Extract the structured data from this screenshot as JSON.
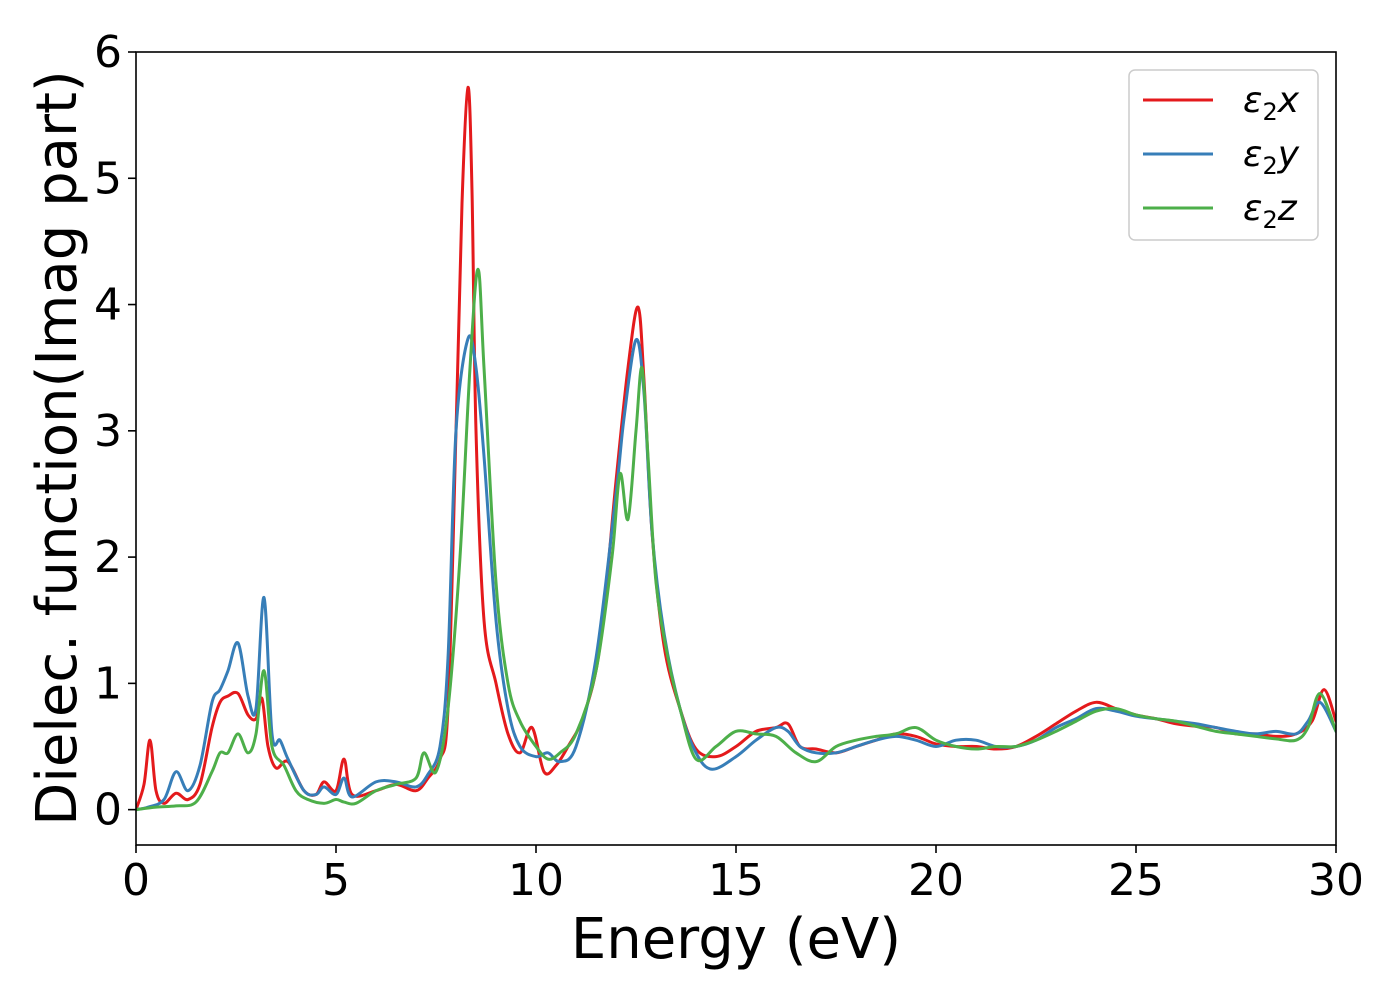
{
  "chart_data": {
    "type": "line",
    "xlabel": "Energy (eV)",
    "ylabel": "Dielec. function(Imag part)",
    "xlim": [
      0,
      30
    ],
    "ylim": [
      -0.28,
      6
    ],
    "xticks": [
      "0",
      "5",
      "10",
      "15",
      "20",
      "25",
      "30"
    ],
    "yticks": [
      "0",
      "1",
      "2",
      "3",
      "4",
      "5",
      "6"
    ],
    "xtick_values": [
      0,
      5,
      10,
      15,
      20,
      25,
      30
    ],
    "ytick_values": [
      0,
      1,
      2,
      3,
      4,
      5,
      6
    ],
    "legend_position": "top-right",
    "grid": false,
    "series": [
      {
        "name": "ε₂x",
        "legend": {
          "base": "ε",
          "sub": "2",
          "var": "x"
        },
        "color": "#e41a1c",
        "x": [
          0,
          0.2,
          0.35,
          0.5,
          0.7,
          1.0,
          1.3,
          1.6,
          1.9,
          2.1,
          2.3,
          2.55,
          2.8,
          3.0,
          3.15,
          3.3,
          3.5,
          3.8,
          4.2,
          4.5,
          4.7,
          5.0,
          5.2,
          5.4,
          6.0,
          6.5,
          7.0,
          7.3,
          7.6,
          7.8,
          8.0,
          8.15,
          8.3,
          8.4,
          8.5,
          8.7,
          9.0,
          9.3,
          9.6,
          9.9,
          10.2,
          10.5,
          10.8,
          11.2,
          11.6,
          12.0,
          12.3,
          12.55,
          12.7,
          12.9,
          13.2,
          13.6,
          14.0,
          14.5,
          15.0,
          15.5,
          16.0,
          16.3,
          16.6,
          17.0,
          17.5,
          18.0,
          18.5,
          19.0,
          19.5,
          20.0,
          20.5,
          21.0,
          21.5,
          22.0,
          22.5,
          23.0,
          23.5,
          24.0,
          24.5,
          25.0,
          25.5,
          26.0,
          26.5,
          27.0,
          27.5,
          28.0,
          28.5,
          29.0,
          29.4,
          29.7,
          30.0
        ],
        "y": [
          0,
          0.2,
          0.55,
          0.15,
          0.05,
          0.13,
          0.08,
          0.2,
          0.65,
          0.85,
          0.9,
          0.92,
          0.75,
          0.72,
          0.88,
          0.5,
          0.33,
          0.38,
          0.15,
          0.12,
          0.22,
          0.15,
          0.4,
          0.12,
          0.15,
          0.2,
          0.15,
          0.25,
          0.4,
          0.8,
          3.0,
          4.8,
          5.72,
          4.9,
          3.0,
          1.5,
          1.0,
          0.6,
          0.45,
          0.65,
          0.3,
          0.35,
          0.5,
          0.75,
          1.3,
          2.6,
          3.5,
          3.98,
          3.4,
          2.2,
          1.3,
          0.8,
          0.48,
          0.42,
          0.5,
          0.62,
          0.65,
          0.68,
          0.5,
          0.48,
          0.45,
          0.5,
          0.55,
          0.6,
          0.58,
          0.52,
          0.5,
          0.5,
          0.48,
          0.5,
          0.58,
          0.68,
          0.78,
          0.85,
          0.8,
          0.75,
          0.72,
          0.68,
          0.66,
          0.65,
          0.6,
          0.6,
          0.58,
          0.6,
          0.7,
          0.95,
          0.7
        ]
      },
      {
        "name": "ε₂y",
        "legend": {
          "base": "ε",
          "sub": "2",
          "var": "y"
        },
        "color": "#377eb8",
        "x": [
          0,
          0.3,
          0.7,
          1.0,
          1.3,
          1.6,
          1.9,
          2.1,
          2.3,
          2.55,
          2.8,
          3.0,
          3.2,
          3.4,
          3.6,
          3.8,
          4.2,
          4.5,
          4.7,
          5.0,
          5.2,
          5.4,
          6.0,
          6.5,
          7.0,
          7.3,
          7.6,
          7.8,
          8.0,
          8.3,
          8.5,
          8.7,
          9.0,
          9.3,
          9.6,
          10.0,
          10.3,
          10.6,
          11.0,
          11.5,
          12.0,
          12.2,
          12.5,
          12.7,
          12.9,
          13.2,
          13.6,
          14.0,
          14.4,
          15.0,
          15.5,
          16.0,
          16.3,
          16.6,
          17.0,
          17.5,
          18.0,
          18.5,
          19.0,
          19.5,
          20.0,
          20.5,
          21.0,
          21.5,
          22.0,
          22.5,
          23.0,
          23.5,
          24.0,
          24.5,
          25.0,
          25.5,
          26.0,
          26.5,
          27.0,
          27.5,
          28.0,
          28.5,
          29.0,
          29.3,
          29.6,
          30.0
        ],
        "y": [
          0,
          0.02,
          0.08,
          0.3,
          0.15,
          0.35,
          0.85,
          0.95,
          1.1,
          1.32,
          0.9,
          0.8,
          1.68,
          0.6,
          0.55,
          0.4,
          0.15,
          0.12,
          0.18,
          0.12,
          0.25,
          0.1,
          0.22,
          0.22,
          0.18,
          0.28,
          0.5,
          1.2,
          3.0,
          3.73,
          3.5,
          2.8,
          1.5,
          0.8,
          0.5,
          0.42,
          0.45,
          0.38,
          0.5,
          1.2,
          2.5,
          3.1,
          3.72,
          3.3,
          2.2,
          1.4,
          0.8,
          0.45,
          0.32,
          0.42,
          0.55,
          0.65,
          0.62,
          0.5,
          0.45,
          0.45,
          0.5,
          0.55,
          0.58,
          0.55,
          0.5,
          0.55,
          0.55,
          0.5,
          0.5,
          0.55,
          0.65,
          0.72,
          0.8,
          0.78,
          0.74,
          0.72,
          0.7,
          0.68,
          0.65,
          0.62,
          0.6,
          0.62,
          0.6,
          0.7,
          0.85,
          0.62
        ]
      },
      {
        "name": "ε₂z",
        "legend": {
          "base": "ε",
          "sub": "2",
          "var": "z"
        },
        "color": "#4daf4a",
        "x": [
          0,
          0.5,
          1.0,
          1.5,
          1.9,
          2.1,
          2.3,
          2.55,
          2.8,
          3.0,
          3.2,
          3.4,
          3.7,
          4.0,
          4.3,
          4.7,
          5.0,
          5.2,
          5.5,
          6.0,
          6.5,
          7.0,
          7.2,
          7.5,
          7.8,
          8.1,
          8.35,
          8.55,
          8.7,
          9.0,
          9.3,
          9.6,
          10.0,
          10.3,
          10.6,
          11.0,
          11.5,
          11.9,
          12.1,
          12.3,
          12.5,
          12.65,
          12.8,
          13.0,
          13.3,
          13.6,
          14.0,
          14.5,
          15.0,
          15.5,
          16.0,
          16.5,
          17.0,
          17.5,
          18.0,
          18.5,
          19.0,
          19.5,
          20.0,
          20.5,
          21.0,
          21.5,
          22.0,
          22.5,
          23.0,
          23.5,
          24.0,
          24.5,
          25.0,
          25.5,
          26.0,
          26.5,
          27.0,
          27.5,
          28.0,
          28.5,
          29.0,
          29.3,
          29.6,
          30.0
        ],
        "y": [
          0,
          0.02,
          0.03,
          0.06,
          0.3,
          0.45,
          0.45,
          0.6,
          0.45,
          0.6,
          1.1,
          0.5,
          0.35,
          0.15,
          0.08,
          0.05,
          0.08,
          0.06,
          0.05,
          0.15,
          0.2,
          0.25,
          0.45,
          0.3,
          0.8,
          2.0,
          3.5,
          4.28,
          3.5,
          1.8,
          1.0,
          0.7,
          0.5,
          0.4,
          0.45,
          0.6,
          1.1,
          2.0,
          2.66,
          2.3,
          3.0,
          3.5,
          2.8,
          1.8,
          1.2,
          0.8,
          0.4,
          0.5,
          0.62,
          0.6,
          0.58,
          0.45,
          0.38,
          0.5,
          0.55,
          0.58,
          0.6,
          0.65,
          0.55,
          0.5,
          0.48,
          0.5,
          0.5,
          0.55,
          0.62,
          0.7,
          0.78,
          0.8,
          0.75,
          0.72,
          0.7,
          0.66,
          0.62,
          0.6,
          0.58,
          0.56,
          0.55,
          0.65,
          0.92,
          0.62
        ]
      }
    ]
  }
}
